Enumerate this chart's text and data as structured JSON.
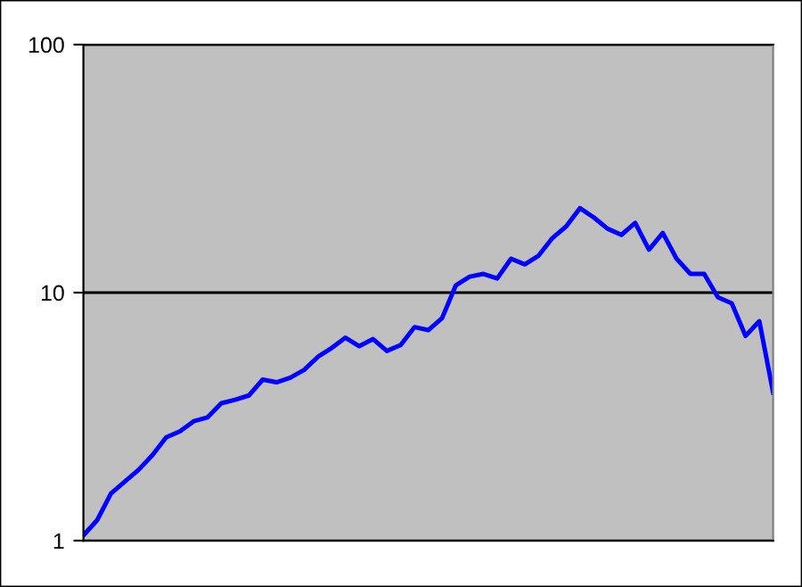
{
  "chart_data": {
    "type": "line",
    "log": "y",
    "grid": "y",
    "tick_labels": "y",
    "ylim": [
      1,
      100
    ],
    "yticks": [
      1,
      10,
      100
    ],
    "categories": [
      null,
      null,
      null,
      null,
      null,
      null,
      null,
      null,
      null,
      null,
      null,
      null,
      null,
      null,
      null,
      null,
      null,
      null,
      null,
      null,
      null,
      null,
      null,
      null,
      null,
      null,
      null,
      null,
      null,
      null,
      null,
      null,
      null,
      null,
      null,
      null,
      null,
      null,
      null,
      null,
      null,
      null,
      null,
      null,
      null,
      null,
      null,
      null,
      null,
      null,
      null
    ],
    "series": [
      {
        "color": "#0000ff",
        "values": [
          1.05,
          1.21,
          1.55,
          1.73,
          1.93,
          2.21,
          2.61,
          2.76,
          3.03,
          3.14,
          3.58,
          3.7,
          3.85,
          4.46,
          4.35,
          4.54,
          4.88,
          5.51,
          5.98,
          6.58,
          6.08,
          6.5,
          5.82,
          6.15,
          7.26,
          7.06,
          7.89,
          10.7,
          11.6,
          11.9,
          11.4,
          13.7,
          13.0,
          14.1,
          16.6,
          18.5,
          21.9,
          20.1,
          18.1,
          17.1,
          19.1,
          14.9,
          17.4,
          13.7,
          11.9,
          11.9,
          9.57,
          9.05,
          6.69,
          7.67,
          3.95
        ]
      }
    ]
  }
}
